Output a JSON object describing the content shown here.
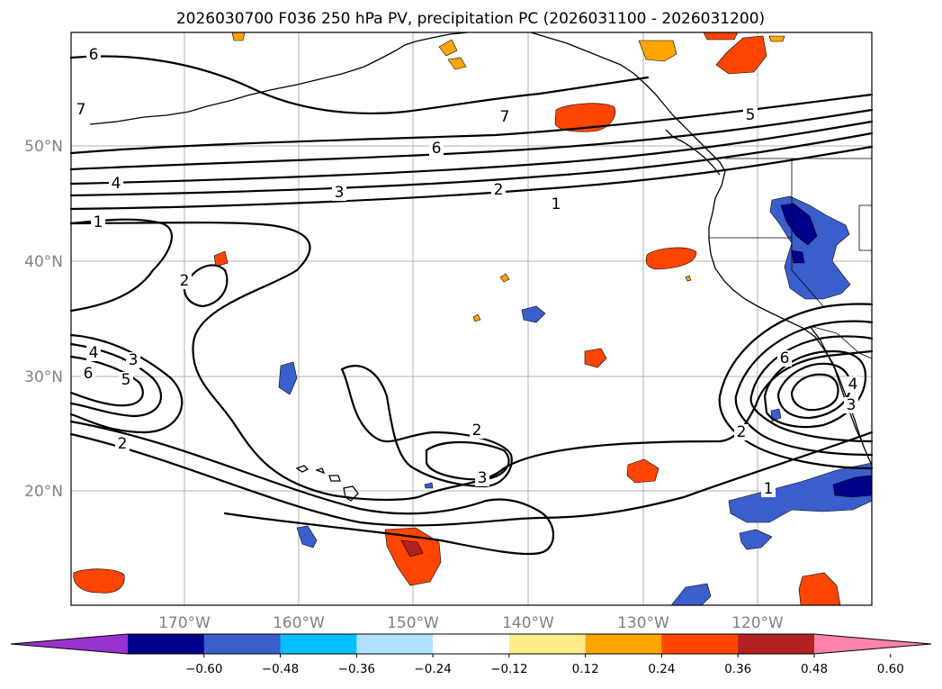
{
  "title": "2026030700 F036 250 hPa PV, precipitation PC (2026031100 - 2026031200)",
  "lat_labels": [
    "50°N",
    "40°N",
    "30°N",
    "20°N"
  ],
  "lon_labels": [
    "170°W",
    "160°W",
    "150°W",
    "140°W",
    "130°W",
    "120°W"
  ],
  "pv_contour_levels": [
    1,
    2,
    3,
    4,
    5,
    6,
    7
  ],
  "contour_labels": [
    "6",
    "7",
    "7",
    "6",
    "5",
    "4",
    "3",
    "2",
    "1",
    "1",
    "2",
    "4",
    "3",
    "6",
    "5",
    "2",
    "2",
    "3",
    "6",
    "4",
    "3",
    "2",
    "1"
  ],
  "colorbar": {
    "ticks": [
      "−0.60",
      "−0.48",
      "−0.36",
      "−0.24",
      "−0.12",
      "0.12",
      "0.24",
      "0.36",
      "0.48",
      "0.60"
    ],
    "colors": [
      "#9932cc",
      "#00008b",
      "#3a5fcd",
      "#00bfff",
      "#b0e2ff",
      "#ffffff",
      "#ffec8b",
      "#ffa500",
      "#ff4500",
      "#b22222",
      "#ff82ab"
    ],
    "extend": "both"
  }
}
